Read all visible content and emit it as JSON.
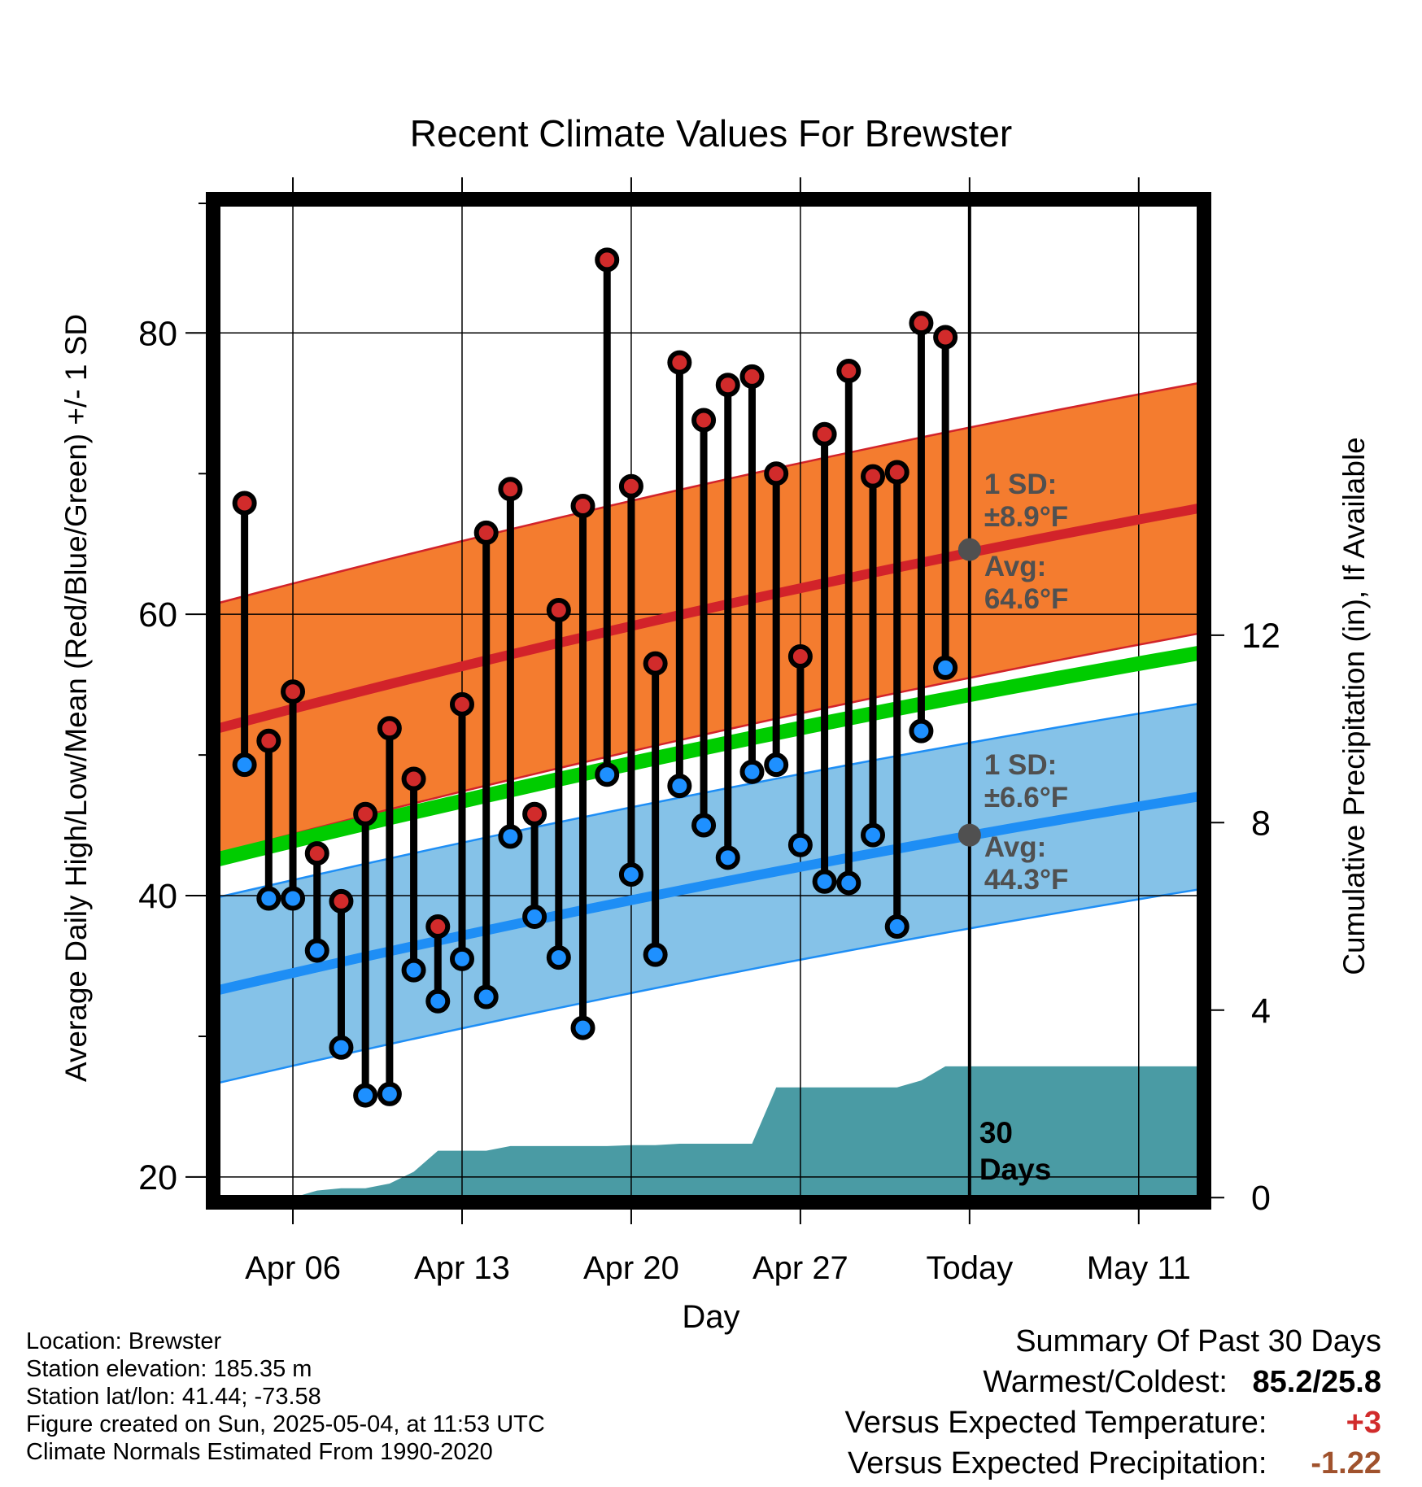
{
  "chart_data": {
    "type": "line",
    "title": "Recent Climate Values For Brewster",
    "xlabel": "Day",
    "ylabel": "Average Daily High/Low/Mean (Red/Blue/Green) +/- 1 SD",
    "y2label": "Cumulative Precipitation (in), If Available",
    "x_ticks": [
      {
        "day": 6,
        "label": "Apr 06"
      },
      {
        "day": 13,
        "label": "Apr 13"
      },
      {
        "day": 20,
        "label": "Apr 20"
      },
      {
        "day": 27,
        "label": "Apr 27"
      },
      {
        "day": 34,
        "label": "Today"
      },
      {
        "day": 41,
        "label": "May 11"
      }
    ],
    "xlim": [
      2.7,
      43.7
    ],
    "ylim": [
      18.2,
      89.5
    ],
    "y_ticks": [
      20,
      40,
      60,
      80
    ],
    "y2lim": [
      -0.1,
      21.3
    ],
    "y2_ticks": [
      0,
      4,
      8,
      12
    ],
    "grid": true,
    "today_day": 34,
    "normals": {
      "days": [
        2.7,
        43.7
      ],
      "high_mean": [
        51.8,
        67.6
      ],
      "high_sd": 8.9,
      "low_mean": [
        33.2,
        47.1
      ],
      "low_sd": 6.6,
      "mean": [
        42.5,
        57.3
      ]
    },
    "annotations": {
      "high_sd_label": [
        "1 SD:",
        "±8.9°F"
      ],
      "high_avg_label": [
        "Avg:",
        "64.6°F"
      ],
      "high_avg_value": 64.6,
      "low_sd_label": [
        "1 SD:",
        "±6.6°F"
      ],
      "low_avg_label": [
        "Avg:",
        "44.3°F"
      ],
      "low_avg_value": 44.3,
      "days_label": [
        "30",
        "Days"
      ]
    },
    "series": [
      {
        "name": "High",
        "x": [
          4,
          5,
          6,
          7,
          8,
          9,
          10,
          11,
          12,
          13,
          14,
          15,
          16,
          17,
          18,
          19,
          20,
          21,
          22,
          23,
          24,
          25,
          26,
          27,
          28,
          29,
          30,
          31,
          32,
          33
        ],
        "values": [
          67.9,
          51.0,
          54.5,
          43.0,
          39.6,
          45.8,
          51.9,
          48.3,
          37.8,
          53.6,
          65.8,
          68.9,
          45.8,
          60.3,
          67.7,
          85.2,
          69.1,
          56.5,
          77.9,
          73.8,
          76.3,
          76.9,
          70.0,
          57.0,
          72.8,
          77.3,
          69.8,
          70.1,
          80.7,
          79.7
        ]
      },
      {
        "name": "Low",
        "x": [
          4,
          5,
          6,
          7,
          8,
          9,
          10,
          11,
          12,
          13,
          14,
          15,
          16,
          17,
          18,
          19,
          20,
          21,
          22,
          23,
          24,
          25,
          26,
          27,
          28,
          29,
          30,
          31,
          32,
          33
        ],
        "values": [
          49.3,
          39.8,
          39.8,
          36.1,
          29.2,
          25.8,
          25.9,
          34.7,
          32.5,
          35.5,
          32.8,
          44.2,
          38.5,
          35.6,
          30.6,
          48.6,
          41.5,
          35.8,
          47.8,
          45.0,
          42.7,
          48.8,
          49.3,
          43.6,
          41.0,
          40.9,
          44.3,
          37.8,
          51.7,
          56.2
        ]
      },
      {
        "name": "Cumulative Precipitation",
        "x": [
          6,
          7,
          8,
          9,
          10,
          11,
          12,
          13,
          14,
          15,
          16,
          17,
          18,
          19,
          20,
          21,
          22,
          23,
          24,
          25,
          26,
          27,
          28,
          29,
          30,
          31,
          32,
          33,
          34,
          43.7
        ],
        "values": [
          0.0,
          0.15,
          0.2,
          0.2,
          0.3,
          0.55,
          1.0,
          1.0,
          1.0,
          1.1,
          1.1,
          1.1,
          1.1,
          1.1,
          1.12,
          1.12,
          1.15,
          1.15,
          1.15,
          1.15,
          2.35,
          2.35,
          2.35,
          2.35,
          2.35,
          2.35,
          2.5,
          2.8,
          2.8,
          2.8
        ]
      }
    ]
  },
  "footer": {
    "location": "Location: Brewster",
    "elevation": "Station elevation: 185.35 m",
    "latlon": "Station lat/lon: 41.44; -73.58",
    "created": "Figure created on Sun, 2025-05-04, at 11:53 UTC",
    "normals": "Climate Normals Estimated From 1990-2020"
  },
  "summary": {
    "title": "Summary Of Past 30 Days",
    "warm_cold_label": "Warmest/Coldest:",
    "warm_cold_value": "85.2/25.8",
    "temp_label": "Versus Expected Temperature:",
    "temp_value": "+3",
    "precip_label": "Versus Expected Precipitation:",
    "precip_value": "-1.22"
  },
  "colors": {
    "high_band": "#f47c2f",
    "high_line": "#d2232a",
    "low_band": "#85c2e8",
    "low_line": "#1e8ef5",
    "mean_line": "#00cc00",
    "precip": "#4a9ba4",
    "high_dot": "#d12b2b",
    "low_dot": "#1e90ff",
    "annotation": "#505050",
    "temp_delta": "#d12b2b",
    "precip_delta": "#a0522d"
  }
}
